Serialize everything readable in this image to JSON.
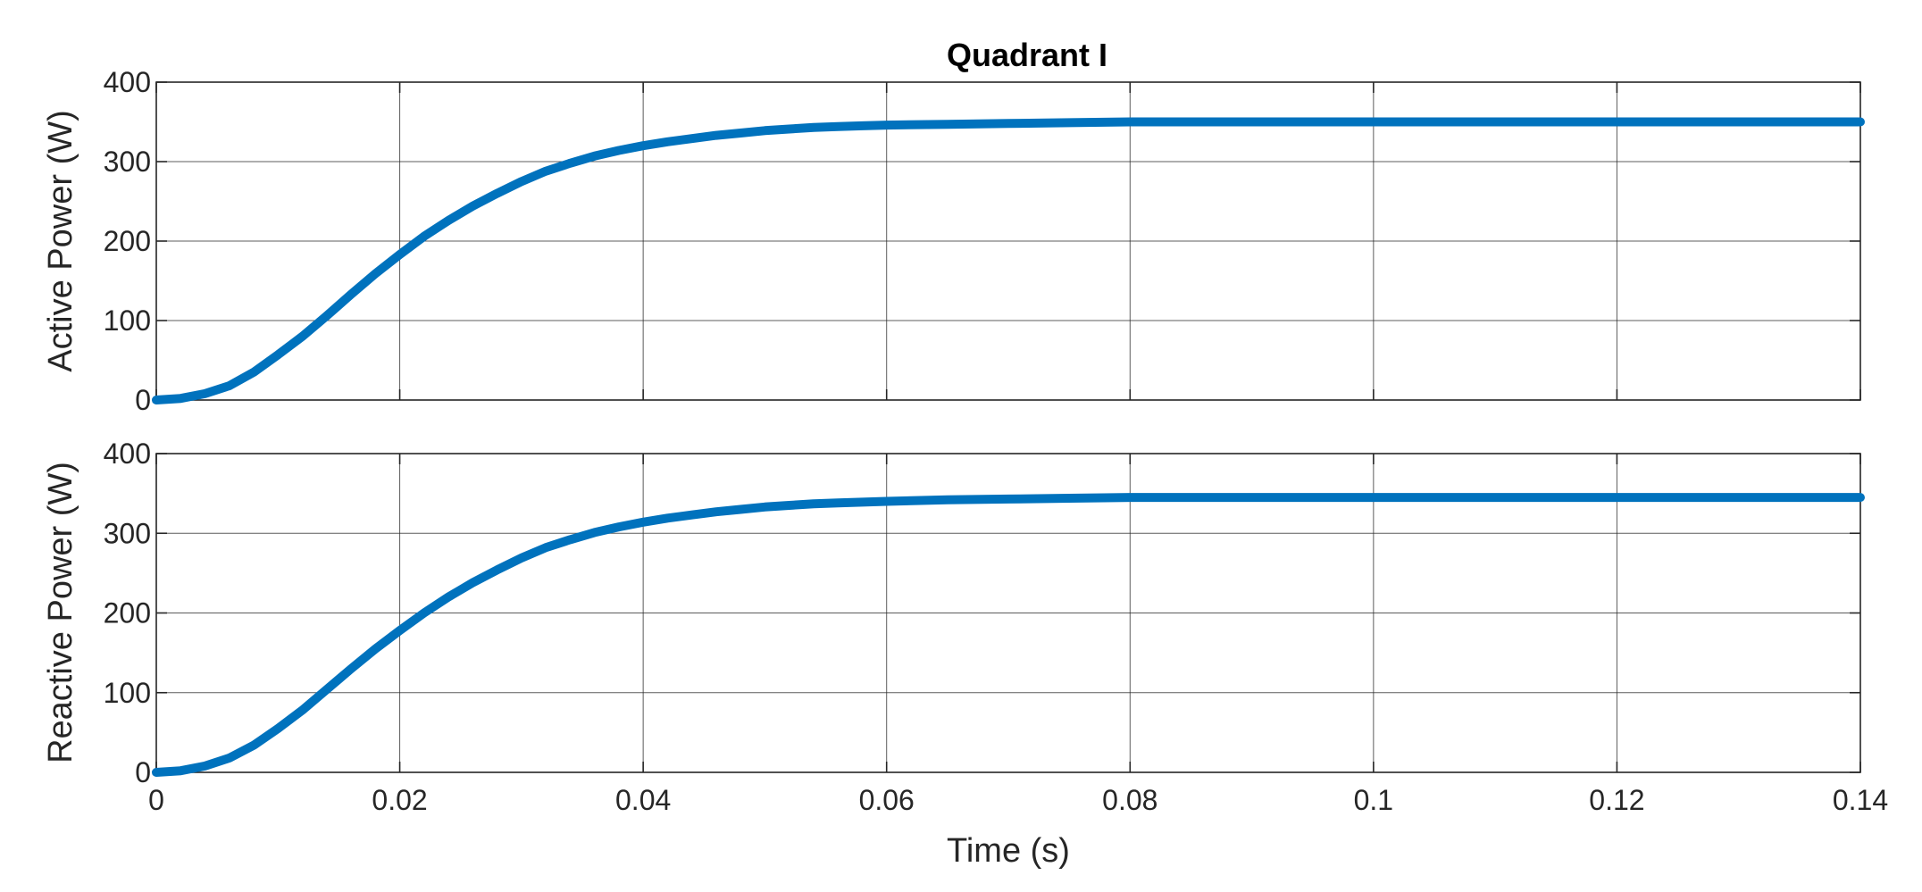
{
  "figure_title": "Quadrant I",
  "chart_data": [
    {
      "type": "line",
      "title": "Quadrant I",
      "xlabel": "",
      "ylabel": "Active Power (W)",
      "xlim": [
        0,
        0.14
      ],
      "ylim": [
        0,
        400
      ],
      "x_ticks": [
        "0",
        "0.02",
        "0.04",
        "0.06",
        "0.08",
        "0.1",
        "0.12",
        "0.14"
      ],
      "y_ticks": [
        "0",
        "100",
        "200",
        "300",
        "400"
      ],
      "grid": true,
      "legend": "none",
      "series": [
        {
          "color": "#0072BD",
          "x": [
            0,
            0.002,
            0.004,
            0.006,
            0.008,
            0.01,
            0.012,
            0.014,
            0.016,
            0.018,
            0.02,
            0.022,
            0.024,
            0.026,
            0.028,
            0.03,
            0.032,
            0.034,
            0.036,
            0.038,
            0.04,
            0.042,
            0.044,
            0.046,
            0.048,
            0.05,
            0.052,
            0.054,
            0.056,
            0.058,
            0.06,
            0.065,
            0.07,
            0.075,
            0.08,
            0.085,
            0.09,
            0.095,
            0.1,
            0.105,
            0.11,
            0.115,
            0.12,
            0.125,
            0.13,
            0.135,
            0.14
          ],
          "y": [
            0,
            2,
            8,
            18,
            35,
            57,
            80,
            106,
            133,
            159,
            183,
            206,
            226,
            244,
            260,
            275,
            288,
            298,
            307,
            314,
            320,
            325,
            329,
            333,
            336,
            339,
            341,
            343,
            344,
            345,
            346,
            347,
            348,
            349,
            350,
            350,
            350,
            350,
            350,
            350,
            350,
            350,
            350,
            350,
            350,
            350,
            350
          ]
        }
      ]
    },
    {
      "type": "line",
      "title": "",
      "xlabel": "Time (s)",
      "ylabel": "Reactive Power (W)",
      "xlim": [
        0,
        0.14
      ],
      "ylim": [
        0,
        400
      ],
      "x_ticks": [
        "0",
        "0.02",
        "0.04",
        "0.06",
        "0.08",
        "0.1",
        "0.12",
        "0.14"
      ],
      "y_ticks": [
        "0",
        "100",
        "200",
        "300",
        "400"
      ],
      "grid": true,
      "legend": "none",
      "series": [
        {
          "color": "#0072BD",
          "x": [
            0,
            0.002,
            0.004,
            0.006,
            0.008,
            0.01,
            0.012,
            0.014,
            0.016,
            0.018,
            0.02,
            0.022,
            0.024,
            0.026,
            0.028,
            0.03,
            0.032,
            0.034,
            0.036,
            0.038,
            0.04,
            0.042,
            0.044,
            0.046,
            0.048,
            0.05,
            0.052,
            0.054,
            0.056,
            0.058,
            0.06,
            0.065,
            0.07,
            0.075,
            0.08,
            0.085,
            0.09,
            0.095,
            0.1,
            0.105,
            0.11,
            0.115,
            0.12,
            0.125,
            0.13,
            0.135,
            0.14
          ],
          "y": [
            0,
            2,
            8,
            18,
            34,
            55,
            78,
            104,
            130,
            155,
            178,
            200,
            220,
            238,
            254,
            269,
            282,
            292,
            301,
            308,
            314,
            319,
            323,
            327,
            330,
            333,
            335,
            337,
            338,
            339,
            340,
            342,
            343,
            344,
            345,
            345,
            345,
            345,
            345,
            345,
            345,
            345,
            345,
            345,
            345,
            345,
            345
          ]
        }
      ]
    }
  ]
}
